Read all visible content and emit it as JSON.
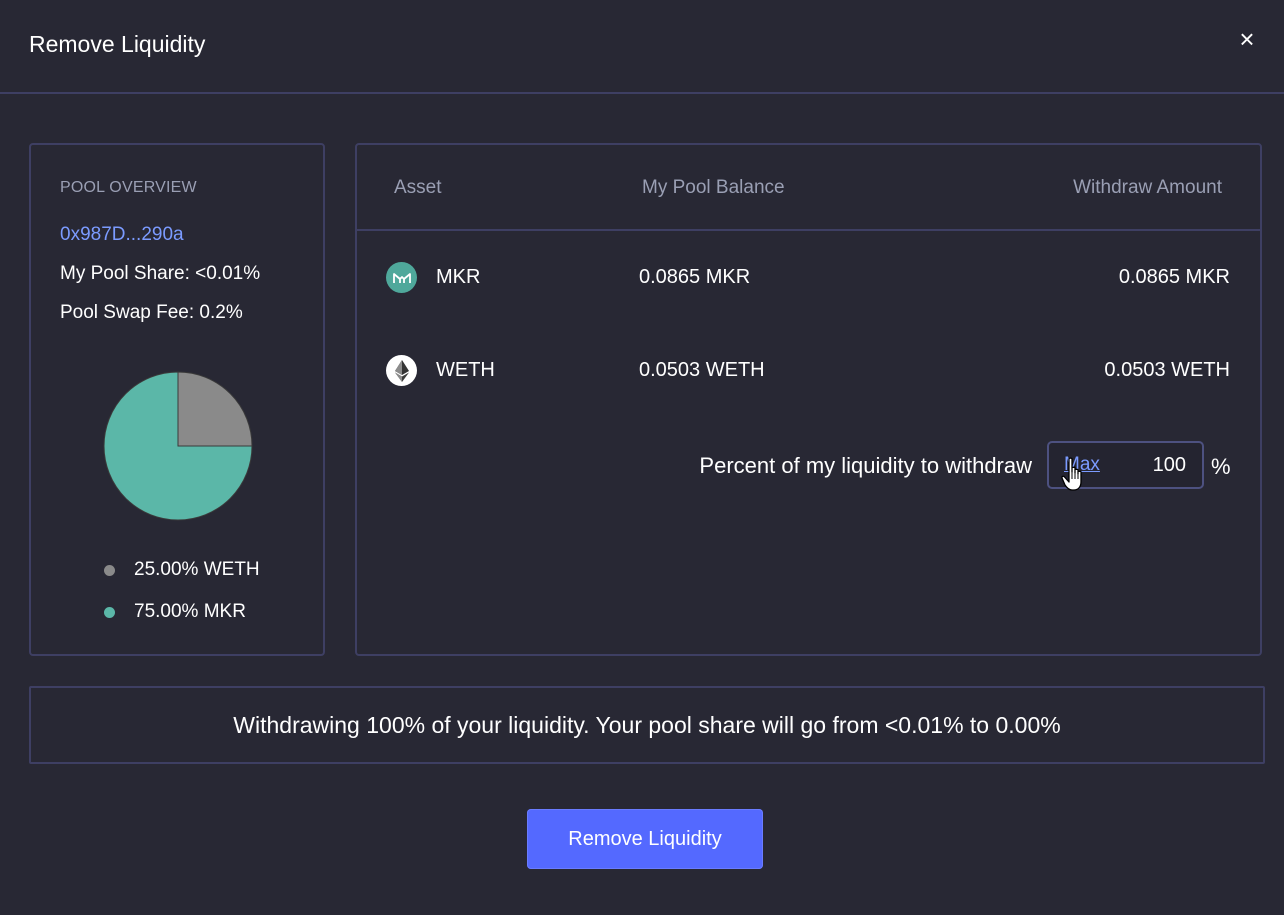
{
  "modal": {
    "title": "Remove Liquidity",
    "close_label": "×"
  },
  "overview": {
    "heading": "POOL OVERVIEW",
    "address": "0x987D...290a",
    "pool_share": "My Pool Share: <0.01%",
    "swap_fee": "Pool Swap Fee: 0.2%",
    "legend": [
      {
        "label": "25.00% WETH",
        "color": "#8a8a8a"
      },
      {
        "label": "75.00% MKR",
        "color": "#5bb7a8"
      }
    ]
  },
  "chart_data": {
    "type": "pie",
    "categories": [
      "WETH",
      "MKR"
    ],
    "values": [
      25.0,
      75.0
    ],
    "colors": [
      "#8a8a8a",
      "#5bb7a8"
    ]
  },
  "assets": {
    "headers": {
      "asset": "Asset",
      "balance": "My Pool Balance",
      "withdraw": "Withdraw Amount"
    },
    "rows": [
      {
        "name": "MKR",
        "balance": "0.0865 MKR",
        "withdraw": "0.0865 MKR",
        "icon": "maker-token-icon"
      },
      {
        "name": "WETH",
        "balance": "0.0503 WETH",
        "withdraw": "0.0503 WETH",
        "icon": "ethereum-token-icon"
      }
    ],
    "percent_label": "Percent of my liquidity to withdraw",
    "max_label": "Max",
    "percent_value": "100",
    "percent_sign": "%"
  },
  "summary": {
    "text": "Withdrawing 100% of your liquidity. Your pool share will go from <0.01% to 0.00%"
  },
  "actions": {
    "submit_label": "Remove Liquidity"
  },
  "colors": {
    "background": "#282834",
    "border": "#3e3f63",
    "accent": "#5469ff",
    "link": "#7b9bff"
  }
}
